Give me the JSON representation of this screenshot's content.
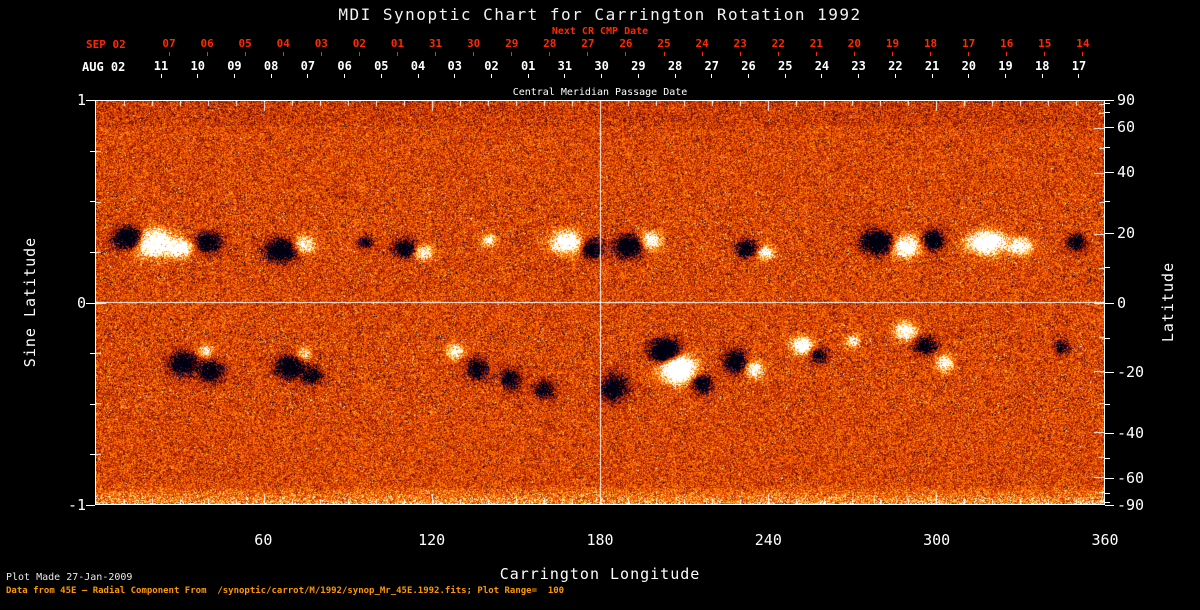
{
  "title": "MDI Synoptic Chart for Carrington Rotation 1992",
  "top_axis": {
    "next_cr_label": "Next CR CMP Date",
    "red_prefix": "SEP 02",
    "red_ticks": [
      "07",
      "06",
      "05",
      "04",
      "03",
      "02",
      "01",
      "31",
      "30",
      "29",
      "28",
      "27",
      "26",
      "25",
      "24",
      "23",
      "22",
      "21",
      "20",
      "19",
      "18",
      "17",
      "16",
      "15",
      "14"
    ],
    "white_prefix": "AUG 02",
    "white_ticks": [
      "11",
      "10",
      "09",
      "08",
      "07",
      "06",
      "05",
      "04",
      "03",
      "02",
      "01",
      "31",
      "30",
      "29",
      "28",
      "27",
      "26",
      "25",
      "24",
      "23",
      "22",
      "21",
      "20",
      "19",
      "18",
      "17"
    ],
    "cmp_label": "Central Meridian Passage Date"
  },
  "axes": {
    "x": {
      "label": "Carrington Longitude",
      "tick_values": [
        60,
        120,
        180,
        240,
        300,
        360
      ]
    },
    "y_left": {
      "label": "Sine Latitude",
      "tick_values": [
        1,
        0,
        -1
      ]
    },
    "y_right": {
      "label": "Latitude",
      "tick_values": [
        90,
        60,
        40,
        20,
        0,
        -20,
        -40,
        -60,
        -90
      ]
    }
  },
  "footer": {
    "line1": "Plot Made 27-Jan-2009",
    "line2": "Data from 45E — Radial Component From  /synoptic/carrot/M/1992/synop_Mr_45E.1992.fits; Plot Range=  100"
  },
  "colors": {
    "background": "#000000",
    "foreground": "#ffffff",
    "next_cr_red": "#ff2a00",
    "footer_note_orange": "#ff9800",
    "quiet_sun_orange": "#e04800",
    "positive_polarity": "#ffffff",
    "negative_polarity": "#000010"
  },
  "chart_data": {
    "type": "heatmap",
    "title": "MDI Synoptic Chart for Carrington Rotation 1992",
    "xlabel": "Carrington Longitude",
    "ylabel": "Sine Latitude",
    "ylabel_right": "Latitude",
    "xlim": [
      0,
      360
    ],
    "ylim": [
      -1,
      1
    ],
    "x_ticks": [
      60,
      120,
      180,
      240,
      300,
      360
    ],
    "y_left_ticks": [
      1,
      0,
      -1
    ],
    "y_right_ticks_deg": [
      90,
      60,
      40,
      20,
      0,
      -20,
      -40,
      -60,
      -90
    ],
    "plot_range": 100,
    "grid_lines": {
      "vertical_at_longitude": 180,
      "horizontal_at_sine_latitude": 0
    },
    "colormap": [
      "#00000f",
      "#14145a",
      "#460a3c",
      "#6e0f0a",
      "#b42800",
      "#e14100",
      "#ff6400",
      "#ff9614",
      "#ffd246",
      "#fff5a0",
      "#ffffff"
    ],
    "colormap_stops": [
      0.0,
      0.04,
      0.09,
      0.16,
      0.3,
      0.45,
      0.6,
      0.75,
      0.86,
      0.93,
      1.0
    ],
    "description": "Full-disk MDI radial magnetic field synoptic map; orange speckle is quiet Sun, white blobs positive polarity, black/blue blobs negative polarity; active region bands near sine latitude +/-0.3",
    "active_regions": [
      {
        "lon": 12,
        "sin_lat": 0.32,
        "r_lon": 5,
        "r_slat": 0.05,
        "amp": -1.6
      },
      {
        "lon": 20,
        "sin_lat": 0.3,
        "r_lon": 7,
        "r_slat": 0.06,
        "amp": 1.5
      },
      {
        "lon": 30,
        "sin_lat": 0.27,
        "r_lon": 4,
        "r_slat": 0.04,
        "amp": 1.0
      },
      {
        "lon": 40,
        "sin_lat": 0.3,
        "r_lon": 4,
        "r_slat": 0.045,
        "amp": -1.2
      },
      {
        "lon": 66,
        "sin_lat": 0.26,
        "r_lon": 5,
        "r_slat": 0.05,
        "amp": -1.4
      },
      {
        "lon": 74,
        "sin_lat": 0.29,
        "r_lon": 3.5,
        "r_slat": 0.04,
        "amp": 0.9
      },
      {
        "lon": 96,
        "sin_lat": 0.3,
        "r_lon": 2.5,
        "r_slat": 0.03,
        "amp": -0.7
      },
      {
        "lon": 110,
        "sin_lat": 0.27,
        "r_lon": 3.5,
        "r_slat": 0.04,
        "amp": -1.1
      },
      {
        "lon": 117,
        "sin_lat": 0.25,
        "r_lon": 3,
        "r_slat": 0.035,
        "amp": 0.8
      },
      {
        "lon": 140,
        "sin_lat": 0.31,
        "r_lon": 2.5,
        "r_slat": 0.03,
        "amp": 0.7
      },
      {
        "lon": 168,
        "sin_lat": 0.3,
        "r_lon": 5,
        "r_slat": 0.05,
        "amp": 1.3
      },
      {
        "lon": 177,
        "sin_lat": 0.27,
        "r_lon": 3.5,
        "r_slat": 0.045,
        "amp": -1.0
      },
      {
        "lon": 190,
        "sin_lat": 0.28,
        "r_lon": 4.5,
        "r_slat": 0.05,
        "amp": -1.3
      },
      {
        "lon": 198,
        "sin_lat": 0.31,
        "r_lon": 3.5,
        "r_slat": 0.04,
        "amp": 1.0
      },
      {
        "lon": 232,
        "sin_lat": 0.27,
        "r_lon": 3.5,
        "r_slat": 0.04,
        "amp": -1.0
      },
      {
        "lon": 239,
        "sin_lat": 0.25,
        "r_lon": 3,
        "r_slat": 0.035,
        "amp": 0.8
      },
      {
        "lon": 279,
        "sin_lat": 0.3,
        "r_lon": 5,
        "r_slat": 0.05,
        "amp": -1.5
      },
      {
        "lon": 289,
        "sin_lat": 0.28,
        "r_lon": 4.5,
        "r_slat": 0.05,
        "amp": 1.3
      },
      {
        "lon": 299,
        "sin_lat": 0.31,
        "r_lon": 3.5,
        "r_slat": 0.045,
        "amp": -1.1
      },
      {
        "lon": 318,
        "sin_lat": 0.3,
        "r_lon": 6,
        "r_slat": 0.05,
        "amp": 1.5
      },
      {
        "lon": 330,
        "sin_lat": 0.28,
        "r_lon": 4,
        "r_slat": 0.04,
        "amp": 1.0
      },
      {
        "lon": 350,
        "sin_lat": 0.3,
        "r_lon": 3,
        "r_slat": 0.04,
        "amp": -0.9
      },
      {
        "lon": 31,
        "sin_lat": -0.3,
        "r_lon": 4.5,
        "r_slat": 0.05,
        "amp": -1.2
      },
      {
        "lon": 41,
        "sin_lat": -0.34,
        "r_lon": 4,
        "r_slat": 0.05,
        "amp": -1.0
      },
      {
        "lon": 39,
        "sin_lat": -0.24,
        "r_lon": 2.5,
        "r_slat": 0.03,
        "amp": 0.7
      },
      {
        "lon": 69,
        "sin_lat": -0.32,
        "r_lon": 4.5,
        "r_slat": 0.05,
        "amp": -1.2
      },
      {
        "lon": 77,
        "sin_lat": -0.36,
        "r_lon": 3.5,
        "r_slat": 0.04,
        "amp": -0.8
      },
      {
        "lon": 74,
        "sin_lat": -0.25,
        "r_lon": 2.5,
        "r_slat": 0.03,
        "amp": 0.6
      },
      {
        "lon": 128,
        "sin_lat": -0.24,
        "r_lon": 3,
        "r_slat": 0.035,
        "amp": 0.8
      },
      {
        "lon": 136,
        "sin_lat": -0.33,
        "r_lon": 3.5,
        "r_slat": 0.05,
        "amp": -0.9
      },
      {
        "lon": 148,
        "sin_lat": -0.38,
        "r_lon": 3.5,
        "r_slat": 0.05,
        "amp": -0.8
      },
      {
        "lon": 160,
        "sin_lat": -0.43,
        "r_lon": 3.5,
        "r_slat": 0.04,
        "amp": -0.9
      },
      {
        "lon": 185,
        "sin_lat": -0.42,
        "r_lon": 4.5,
        "r_slat": 0.06,
        "amp": -1.0
      },
      {
        "lon": 203,
        "sin_lat": -0.24,
        "r_lon": 4.5,
        "r_slat": 0.05,
        "amp": -1.8
      },
      {
        "lon": 208,
        "sin_lat": -0.33,
        "r_lon": 5.5,
        "r_slat": 0.06,
        "amp": 2.0
      },
      {
        "lon": 216,
        "sin_lat": -0.4,
        "r_lon": 3.5,
        "r_slat": 0.045,
        "amp": -1.0
      },
      {
        "lon": 228,
        "sin_lat": -0.29,
        "r_lon": 3.5,
        "r_slat": 0.05,
        "amp": -1.2
      },
      {
        "lon": 235,
        "sin_lat": -0.33,
        "r_lon": 3,
        "r_slat": 0.04,
        "amp": 0.9
      },
      {
        "lon": 252,
        "sin_lat": -0.21,
        "r_lon": 3.5,
        "r_slat": 0.04,
        "amp": 1.2
      },
      {
        "lon": 258,
        "sin_lat": -0.26,
        "r_lon": 3,
        "r_slat": 0.035,
        "amp": -0.8
      },
      {
        "lon": 270,
        "sin_lat": -0.19,
        "r_lon": 2.5,
        "r_slat": 0.03,
        "amp": 0.8
      },
      {
        "lon": 289,
        "sin_lat": -0.14,
        "r_lon": 3.5,
        "r_slat": 0.04,
        "amp": 1.2
      },
      {
        "lon": 296,
        "sin_lat": -0.21,
        "r_lon": 3.5,
        "r_slat": 0.04,
        "amp": -1.0
      },
      {
        "lon": 303,
        "sin_lat": -0.3,
        "r_lon": 3,
        "r_slat": 0.04,
        "amp": 0.8
      },
      {
        "lon": 345,
        "sin_lat": -0.22,
        "r_lon": 2.5,
        "r_slat": 0.035,
        "amp": -0.7
      }
    ]
  }
}
